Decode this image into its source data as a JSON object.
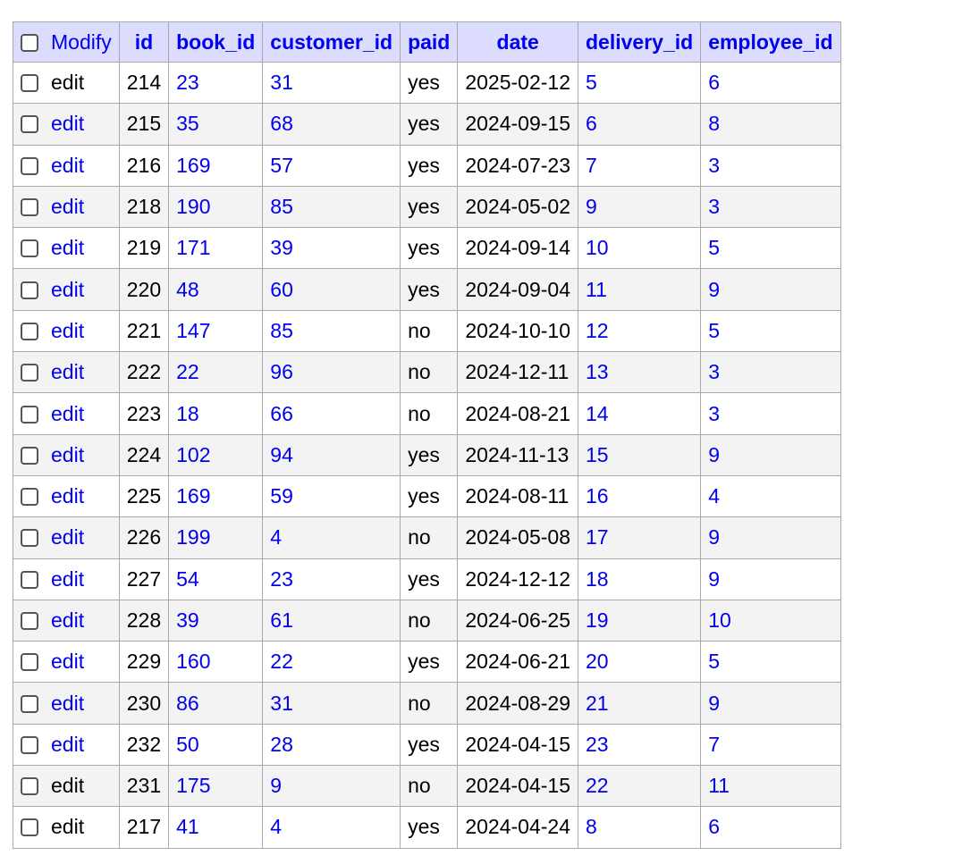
{
  "table": {
    "headers": {
      "modify": "Modify",
      "id": "id",
      "book_id": "book_id",
      "customer_id": "customer_id",
      "paid": "paid",
      "date": "date",
      "delivery_id": "delivery_id",
      "employee_id": "employee_id"
    },
    "rows": [
      {
        "edit": "edit",
        "edit_color": "#000000",
        "id": "214",
        "book_id": "23",
        "customer_id": "31",
        "paid": "yes",
        "date": "2025-02-12",
        "delivery_id": "5",
        "employee_id": "6"
      },
      {
        "edit": "edit",
        "edit_color": "#0000ee",
        "id": "215",
        "book_id": "35",
        "customer_id": "68",
        "paid": "yes",
        "date": "2024-09-15",
        "delivery_id": "6",
        "employee_id": "8"
      },
      {
        "edit": "edit",
        "edit_color": "#0000ee",
        "id": "216",
        "book_id": "169",
        "customer_id": "57",
        "paid": "yes",
        "date": "2024-07-23",
        "delivery_id": "7",
        "employee_id": "3"
      },
      {
        "edit": "edit",
        "edit_color": "#0000ee",
        "id": "218",
        "book_id": "190",
        "customer_id": "85",
        "paid": "yes",
        "date": "2024-05-02",
        "delivery_id": "9",
        "employee_id": "3"
      },
      {
        "edit": "edit",
        "edit_color": "#0000ee",
        "id": "219",
        "book_id": "171",
        "customer_id": "39",
        "paid": "yes",
        "date": "2024-09-14",
        "delivery_id": "10",
        "employee_id": "5"
      },
      {
        "edit": "edit",
        "edit_color": "#0000ee",
        "id": "220",
        "book_id": "48",
        "customer_id": "60",
        "paid": "yes",
        "date": "2024-09-04",
        "delivery_id": "11",
        "employee_id": "9"
      },
      {
        "edit": "edit",
        "edit_color": "#0000ee",
        "id": "221",
        "book_id": "147",
        "customer_id": "85",
        "paid": "no",
        "date": "2024-10-10",
        "delivery_id": "12",
        "employee_id": "5"
      },
      {
        "edit": "edit",
        "edit_color": "#0000ee",
        "id": "222",
        "book_id": "22",
        "customer_id": "96",
        "paid": "no",
        "date": "2024-12-11",
        "delivery_id": "13",
        "employee_id": "3"
      },
      {
        "edit": "edit",
        "edit_color": "#0000ee",
        "id": "223",
        "book_id": "18",
        "customer_id": "66",
        "paid": "no",
        "date": "2024-08-21",
        "delivery_id": "14",
        "employee_id": "3"
      },
      {
        "edit": "edit",
        "edit_color": "#0000ee",
        "id": "224",
        "book_id": "102",
        "customer_id": "94",
        "paid": "yes",
        "date": "2024-11-13",
        "delivery_id": "15",
        "employee_id": "9"
      },
      {
        "edit": "edit",
        "edit_color": "#0000ee",
        "id": "225",
        "book_id": "169",
        "customer_id": "59",
        "paid": "yes",
        "date": "2024-08-11",
        "delivery_id": "16",
        "employee_id": "4"
      },
      {
        "edit": "edit",
        "edit_color": "#0000ee",
        "id": "226",
        "book_id": "199",
        "customer_id": "4",
        "paid": "no",
        "date": "2024-05-08",
        "delivery_id": "17",
        "employee_id": "9"
      },
      {
        "edit": "edit",
        "edit_color": "#0000ee",
        "id": "227",
        "book_id": "54",
        "customer_id": "23",
        "paid": "yes",
        "date": "2024-12-12",
        "delivery_id": "18",
        "employee_id": "9"
      },
      {
        "edit": "edit",
        "edit_color": "#0000ee",
        "id": "228",
        "book_id": "39",
        "customer_id": "61",
        "paid": "no",
        "date": "2024-06-25",
        "delivery_id": "19",
        "employee_id": "10"
      },
      {
        "edit": "edit",
        "edit_color": "#0000ee",
        "id": "229",
        "book_id": "160",
        "customer_id": "22",
        "paid": "yes",
        "date": "2024-06-21",
        "delivery_id": "20",
        "employee_id": "5"
      },
      {
        "edit": "edit",
        "edit_color": "#0000ee",
        "id": "230",
        "book_id": "86",
        "customer_id": "31",
        "paid": "no",
        "date": "2024-08-29",
        "delivery_id": "21",
        "employee_id": "9"
      },
      {
        "edit": "edit",
        "edit_color": "#0000ee",
        "id": "232",
        "book_id": "50",
        "customer_id": "28",
        "paid": "yes",
        "date": "2024-04-15",
        "delivery_id": "23",
        "employee_id": "7"
      },
      {
        "edit": "edit",
        "edit_color": "#000000",
        "id": "231",
        "book_id": "175",
        "customer_id": "9",
        "paid": "no",
        "date": "2024-04-15",
        "delivery_id": "22",
        "employee_id": "11"
      },
      {
        "edit": "edit",
        "edit_color": "#000000",
        "id": "217",
        "book_id": "41",
        "customer_id": "4",
        "paid": "yes",
        "date": "2024-04-24",
        "delivery_id": "8",
        "employee_id": "6"
      }
    ]
  },
  "colors": {
    "header_bg": "#dcdcff",
    "link": "#0000ee",
    "row_alt_bg": "#f3f3f3",
    "border": "#a9a9a9"
  }
}
